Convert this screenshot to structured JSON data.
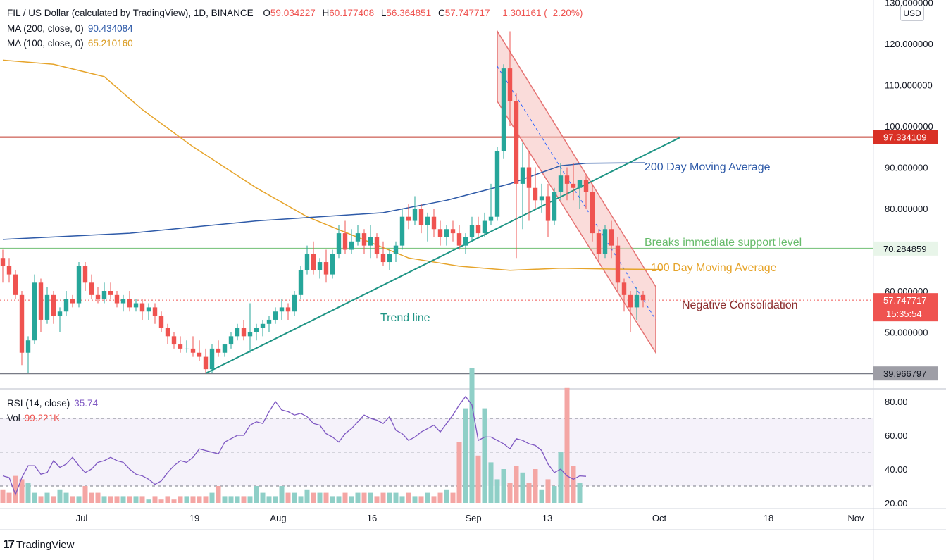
{
  "header": {
    "symbol": "FIL / US Dollar (calculated by TradingView), 1D, BINANCE",
    "o_label": "O",
    "o_value": "59.034227",
    "h_label": "H",
    "h_value": "60.177408",
    "l_label": "L",
    "l_value": "56.364851",
    "c_label": "C",
    "c_value": "57.747717",
    "change": "−1.301161 (−2.20%)"
  },
  "ma200": {
    "label": "MA (200, close, 0)",
    "value": "90.434084",
    "color": "#2e5aa8"
  },
  "ma100": {
    "label": "MA (100, close, 0)",
    "value": "65.210160",
    "color": "#e6a42b"
  },
  "currency_button": "USD",
  "colors": {
    "up": "#26a69a",
    "down": "#ef5350",
    "resistance": "#c0392b",
    "support": "#81c784",
    "floor": "#787b86",
    "trend": "#1e9484",
    "channel": "#f6c4c2"
  },
  "price_axis": {
    "ticks": [
      "130.000000",
      "120.000000",
      "110.000000",
      "100.000000",
      "90.000000",
      "80.000000",
      "60.000000",
      "50.000000"
    ],
    "badges": {
      "resistance": "97.334109",
      "support": "70.284859",
      "current_price": "57.747717",
      "countdown": "15:35:54",
      "floor": "39.966797"
    }
  },
  "time_axis": {
    "labels": [
      "Jul",
      "19",
      "Aug",
      "16",
      "Sep",
      "13",
      "Oct",
      "18",
      "Nov"
    ]
  },
  "annotations": {
    "ma200_note": "200 Day Moving Average",
    "support_note": "Breaks immediate support level",
    "ma100_note": "100 Day Moving Average",
    "trend_note": "Trend line",
    "consolidation_note": "Negative Consolidation"
  },
  "rsi": {
    "label": "RSI (14, close)",
    "value": "35.74",
    "vol_label": "Vol",
    "vol_value": "99.221K",
    "ticks": [
      "80.00",
      "60.00",
      "40.00",
      "20.00"
    ],
    "color": "#7e57c2"
  },
  "branding": "TradingView",
  "chart_data": {
    "type": "candlestick",
    "title": "FIL / US Dollar (calculated by TradingView), 1D, BINANCE",
    "ylim": [
      35,
      131
    ],
    "horizontal_levels": [
      97.334109,
      70.284859,
      39.966797
    ],
    "candles": [
      {
        "o": 68,
        "h": 70,
        "l": 62,
        "c": 66
      },
      {
        "o": 66,
        "h": 68,
        "l": 62,
        "c": 64
      },
      {
        "o": 64,
        "h": 65,
        "l": 58,
        "c": 59
      },
      {
        "o": 59,
        "h": 60,
        "l": 42,
        "c": 45
      },
      {
        "o": 45,
        "h": 49,
        "l": 40,
        "c": 48
      },
      {
        "o": 48,
        "h": 64,
        "l": 47,
        "c": 62
      },
      {
        "o": 62,
        "h": 63,
        "l": 50,
        "c": 53
      },
      {
        "o": 53,
        "h": 61,
        "l": 52,
        "c": 59
      },
      {
        "o": 59,
        "h": 60,
        "l": 52,
        "c": 54
      },
      {
        "o": 54,
        "h": 56,
        "l": 50,
        "c": 55
      },
      {
        "o": 55,
        "h": 60,
        "l": 54,
        "c": 58
      },
      {
        "o": 58,
        "h": 59,
        "l": 56,
        "c": 57
      },
      {
        "o": 57,
        "h": 67,
        "l": 56,
        "c": 66
      },
      {
        "o": 66,
        "h": 67,
        "l": 60,
        "c": 62
      },
      {
        "o": 62,
        "h": 64,
        "l": 58,
        "c": 59
      },
      {
        "o": 59,
        "h": 61,
        "l": 57,
        "c": 58
      },
      {
        "o": 58,
        "h": 62,
        "l": 57,
        "c": 60
      },
      {
        "o": 60,
        "h": 62,
        "l": 58,
        "c": 59
      },
      {
        "o": 59,
        "h": 60,
        "l": 56,
        "c": 57
      },
      {
        "o": 57,
        "h": 59,
        "l": 55,
        "c": 58
      },
      {
        "o": 58,
        "h": 60,
        "l": 55,
        "c": 56
      },
      {
        "o": 56,
        "h": 58,
        "l": 55,
        "c": 57
      },
      {
        "o": 57,
        "h": 58,
        "l": 53,
        "c": 55
      },
      {
        "o": 55,
        "h": 57,
        "l": 53,
        "c": 56
      },
      {
        "o": 56,
        "h": 57,
        "l": 52,
        "c": 54
      },
      {
        "o": 54,
        "h": 55,
        "l": 50,
        "c": 51
      },
      {
        "o": 51,
        "h": 52,
        "l": 47,
        "c": 49
      },
      {
        "o": 49,
        "h": 50,
        "l": 46,
        "c": 47
      },
      {
        "o": 47,
        "h": 49,
        "l": 45,
        "c": 46
      },
      {
        "o": 46,
        "h": 48,
        "l": 45,
        "c": 46
      },
      {
        "o": 46,
        "h": 49,
        "l": 44,
        "c": 45
      },
      {
        "o": 45,
        "h": 48,
        "l": 43,
        "c": 44
      },
      {
        "o": 44,
        "h": 46,
        "l": 40,
        "c": 41
      },
      {
        "o": 41,
        "h": 47,
        "l": 40,
        "c": 46
      },
      {
        "o": 46,
        "h": 48,
        "l": 44,
        "c": 45
      },
      {
        "o": 45,
        "h": 47,
        "l": 44,
        "c": 47
      },
      {
        "o": 47,
        "h": 50,
        "l": 46,
        "c": 49
      },
      {
        "o": 49,
        "h": 52,
        "l": 48,
        "c": 51
      },
      {
        "o": 51,
        "h": 53,
        "l": 48,
        "c": 49
      },
      {
        "o": 49,
        "h": 57,
        "l": 45,
        "c": 50
      },
      {
        "o": 50,
        "h": 52,
        "l": 48,
        "c": 51
      },
      {
        "o": 51,
        "h": 53,
        "l": 49,
        "c": 52
      },
      {
        "o": 52,
        "h": 54,
        "l": 50,
        "c": 53
      },
      {
        "o": 53,
        "h": 56,
        "l": 52,
        "c": 55
      },
      {
        "o": 55,
        "h": 58,
        "l": 53,
        "c": 56
      },
      {
        "o": 56,
        "h": 57,
        "l": 53,
        "c": 55
      },
      {
        "o": 55,
        "h": 60,
        "l": 54,
        "c": 59
      },
      {
        "o": 59,
        "h": 66,
        "l": 58,
        "c": 65
      },
      {
        "o": 65,
        "h": 71,
        "l": 64,
        "c": 69
      },
      {
        "o": 69,
        "h": 72,
        "l": 64,
        "c": 65
      },
      {
        "o": 65,
        "h": 68,
        "l": 63,
        "c": 67
      },
      {
        "o": 67,
        "h": 70,
        "l": 62,
        "c": 64
      },
      {
        "o": 64,
        "h": 70,
        "l": 63,
        "c": 69
      },
      {
        "o": 69,
        "h": 76,
        "l": 68,
        "c": 74
      },
      {
        "o": 74,
        "h": 77,
        "l": 69,
        "c": 70
      },
      {
        "o": 70,
        "h": 75,
        "l": 69,
        "c": 72
      },
      {
        "o": 72,
        "h": 76,
        "l": 71,
        "c": 74
      },
      {
        "o": 74,
        "h": 75,
        "l": 69,
        "c": 71
      },
      {
        "o": 71,
        "h": 76,
        "l": 68,
        "c": 73
      },
      {
        "o": 73,
        "h": 74,
        "l": 68,
        "c": 69
      },
      {
        "o": 69,
        "h": 72,
        "l": 66,
        "c": 67
      },
      {
        "o": 67,
        "h": 70,
        "l": 65,
        "c": 69
      },
      {
        "o": 69,
        "h": 72,
        "l": 67,
        "c": 71
      },
      {
        "o": 71,
        "h": 80,
        "l": 70,
        "c": 78
      },
      {
        "o": 78,
        "h": 81,
        "l": 75,
        "c": 77
      },
      {
        "o": 77,
        "h": 83,
        "l": 76,
        "c": 80
      },
      {
        "o": 80,
        "h": 81,
        "l": 74,
        "c": 76
      },
      {
        "o": 76,
        "h": 79,
        "l": 72,
        "c": 78
      },
      {
        "o": 78,
        "h": 80,
        "l": 73,
        "c": 75
      },
      {
        "o": 75,
        "h": 77,
        "l": 71,
        "c": 73
      },
      {
        "o": 73,
        "h": 76,
        "l": 71,
        "c": 75
      },
      {
        "o": 75,
        "h": 77,
        "l": 72,
        "c": 74
      },
      {
        "o": 74,
        "h": 76,
        "l": 70,
        "c": 71
      },
      {
        "o": 71,
        "h": 74,
        "l": 69,
        "c": 73
      },
      {
        "o": 73,
        "h": 78,
        "l": 72,
        "c": 76
      },
      {
        "o": 76,
        "h": 78,
        "l": 73,
        "c": 74
      },
      {
        "o": 74,
        "h": 79,
        "l": 73,
        "c": 77
      },
      {
        "o": 77,
        "h": 86,
        "l": 76,
        "c": 78
      },
      {
        "o": 78,
        "h": 95,
        "l": 77,
        "c": 94
      },
      {
        "o": 94,
        "h": 115,
        "l": 92,
        "c": 114
      },
      {
        "o": 114,
        "h": 123,
        "l": 100,
        "c": 106
      },
      {
        "o": 106,
        "h": 108,
        "l": 68,
        "c": 86
      },
      {
        "o": 86,
        "h": 96,
        "l": 75,
        "c": 90
      },
      {
        "o": 90,
        "h": 94,
        "l": 77,
        "c": 85
      },
      {
        "o": 85,
        "h": 90,
        "l": 80,
        "c": 82
      },
      {
        "o": 82,
        "h": 86,
        "l": 79,
        "c": 83
      },
      {
        "o": 83,
        "h": 86,
        "l": 73,
        "c": 77
      },
      {
        "o": 77,
        "h": 85,
        "l": 76,
        "c": 84
      },
      {
        "o": 84,
        "h": 91,
        "l": 82,
        "c": 88
      },
      {
        "o": 88,
        "h": 90,
        "l": 82,
        "c": 86
      },
      {
        "o": 86,
        "h": 91,
        "l": 82,
        "c": 85
      },
      {
        "o": 85,
        "h": 87,
        "l": 80,
        "c": 87
      },
      {
        "o": 87,
        "h": 88,
        "l": 80,
        "c": 84
      },
      {
        "o": 84,
        "h": 86,
        "l": 72,
        "c": 74
      },
      {
        "o": 74,
        "h": 75,
        "l": 67,
        "c": 69
      },
      {
        "o": 69,
        "h": 76,
        "l": 68,
        "c": 75
      },
      {
        "o": 75,
        "h": 77,
        "l": 68,
        "c": 71
      },
      {
        "o": 71,
        "h": 73,
        "l": 60,
        "c": 62
      },
      {
        "o": 62,
        "h": 63,
        "l": 55,
        "c": 59
      },
      {
        "o": 59,
        "h": 60,
        "l": 50,
        "c": 56
      },
      {
        "o": 56,
        "h": 61,
        "l": 53,
        "c": 59
      },
      {
        "o": 59,
        "h": 60,
        "l": 56,
        "c": 57.75
      }
    ],
    "ma200_points": [
      [
        0,
        72.5
      ],
      [
        20,
        74
      ],
      [
        40,
        77
      ],
      [
        60,
        79
      ],
      [
        70,
        82
      ],
      [
        80,
        86
      ],
      [
        88,
        90.4
      ],
      [
        92,
        91
      ]
    ],
    "ma100_points": [
      [
        0,
        116
      ],
      [
        8,
        115
      ],
      [
        16,
        112
      ],
      [
        22,
        104
      ],
      [
        30,
        95
      ],
      [
        40,
        85
      ],
      [
        48,
        78
      ],
      [
        56,
        73
      ],
      [
        64,
        68
      ],
      [
        72,
        66
      ],
      [
        80,
        65
      ],
      [
        88,
        65.5
      ],
      [
        96,
        65.3
      ],
      [
        104,
        65.2
      ]
    ],
    "rsi_values": [
      36,
      35,
      25,
      35,
      42,
      42,
      37,
      38,
      45,
      41,
      43,
      47,
      42,
      38,
      40,
      44,
      45,
      47,
      45,
      44,
      40,
      37,
      36,
      34,
      31,
      33,
      38,
      42,
      45,
      44,
      47,
      52,
      51,
      50,
      49,
      56,
      58,
      60,
      60,
      66,
      68,
      67,
      74,
      80,
      75,
      74,
      72,
      73,
      71,
      67,
      66,
      61,
      59,
      56,
      61,
      64,
      68,
      72,
      70,
      69,
      67,
      71,
      63,
      61,
      57,
      59,
      62,
      64,
      66,
      62,
      67,
      72,
      78,
      83,
      78,
      57,
      59,
      59,
      57,
      55,
      52,
      58,
      57,
      55,
      54,
      51,
      43,
      38,
      40,
      36,
      34,
      36,
      35.74
    ],
    "volume_values": [
      4,
      3,
      8,
      7,
      6,
      3,
      2,
      3,
      2,
      4,
      3,
      2,
      2,
      5,
      3,
      3,
      2,
      2,
      2,
      2,
      2,
      2,
      2,
      1,
      2,
      1,
      2,
      1,
      2,
      2,
      2,
      2,
      2,
      3,
      5,
      2,
      2,
      2,
      2,
      2,
      5,
      3,
      2,
      2,
      5,
      3,
      3,
      2,
      4,
      3,
      3,
      3,
      2,
      2,
      3,
      2,
      3,
      3,
      3,
      2,
      3,
      3,
      3,
      2,
      3,
      2,
      2,
      3,
      2,
      3,
      4,
      3,
      18,
      28,
      40,
      14,
      28,
      12,
      7,
      10,
      6,
      11,
      9,
      6,
      10,
      4,
      7,
      5,
      15,
      34,
      11,
      6
    ]
  }
}
